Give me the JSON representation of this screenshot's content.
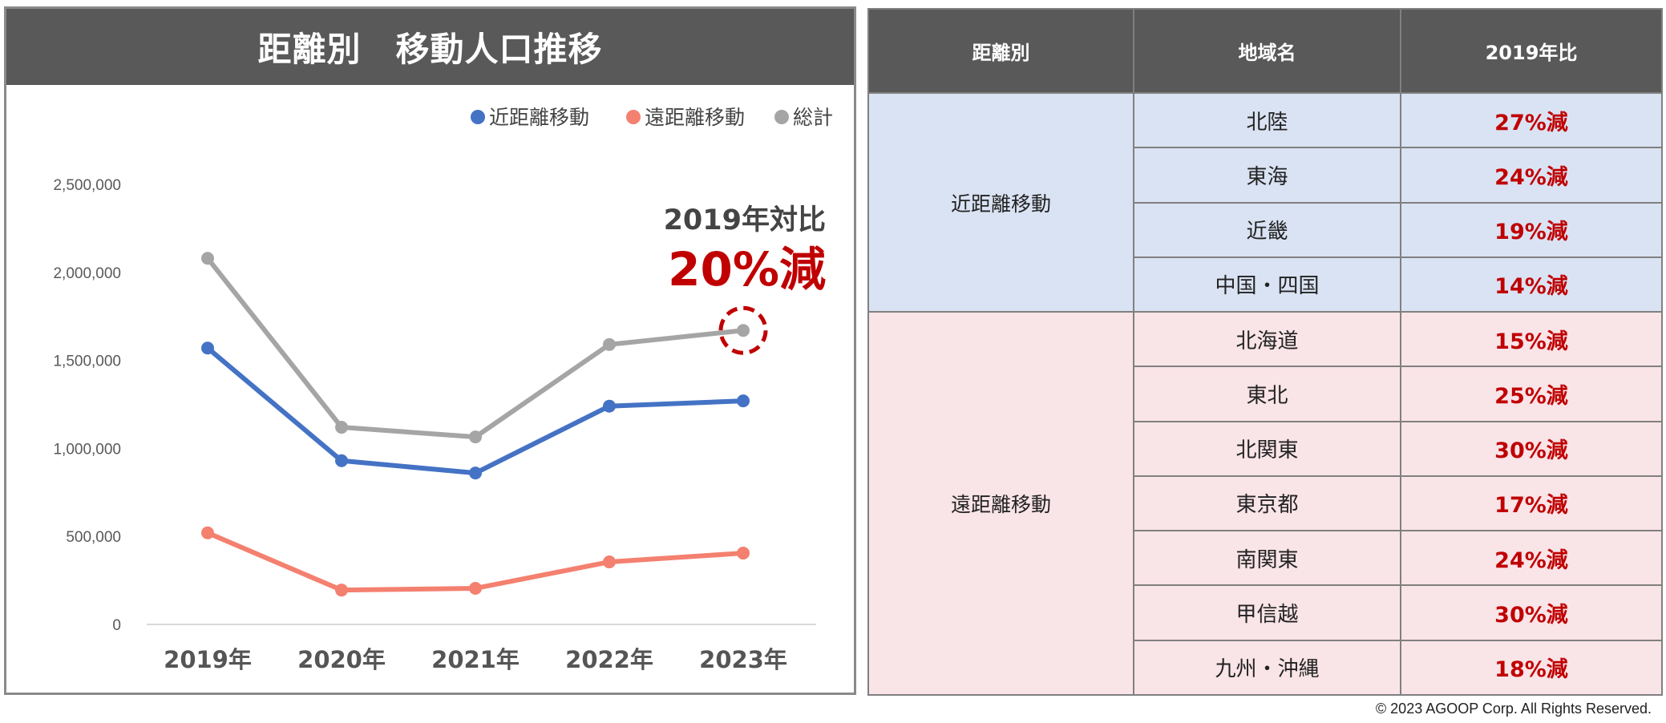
{
  "chart_data": {
    "type": "line",
    "title": "距離別　移動人口推移",
    "categories": [
      "2019年",
      "2020年",
      "2021年",
      "2022年",
      "2023年"
    ],
    "ylim": [
      0,
      2500000
    ],
    "yticks": [
      0,
      500000,
      1000000,
      1500000,
      2000000,
      2500000
    ],
    "ytick_labels": [
      "0",
      "500,000",
      "1,000,000",
      "1,500,000",
      "2,000,000",
      "2,500,000"
    ],
    "grid": false,
    "legend_position": "top-right",
    "series": [
      {
        "name": "近距離移動",
        "color": "#4472c4",
        "values": [
          1570000,
          930000,
          860000,
          1240000,
          1270000
        ]
      },
      {
        "name": "遠距離移動",
        "color": "#f4806f",
        "values": [
          520000,
          195000,
          205000,
          355000,
          405000
        ]
      },
      {
        "name": "総計",
        "color": "#a5a5a5",
        "values": [
          2080000,
          1120000,
          1065000,
          1590000,
          1670000
        ]
      }
    ],
    "annotation": {
      "line1": "2019年対比",
      "line2": "20%減",
      "series_index": 2,
      "point_index": 4,
      "color": "#c00000"
    }
  },
  "table": {
    "headers": [
      "距離別",
      "地域名",
      "2019年比"
    ],
    "groups": [
      {
        "category": "近距離移動",
        "rows": [
          {
            "region": "北陸",
            "ratio": "27%減"
          },
          {
            "region": "東海",
            "ratio": "24%減"
          },
          {
            "region": "近畿",
            "ratio": "19%減"
          },
          {
            "region": "中国・四国",
            "ratio": "14%減"
          }
        ]
      },
      {
        "category": "遠距離移動",
        "rows": [
          {
            "region": "北海道",
            "ratio": "15%減"
          },
          {
            "region": "東北",
            "ratio": "25%減"
          },
          {
            "region": "北関東",
            "ratio": "30%減"
          },
          {
            "region": "東京都",
            "ratio": "17%減"
          },
          {
            "region": "南関東",
            "ratio": "24%減"
          },
          {
            "region": "甲信越",
            "ratio": "30%減"
          },
          {
            "region": "九州・沖縄",
            "ratio": "18%減"
          }
        ]
      }
    ]
  },
  "copyright": "© 2023 AGOOP Corp. All Rights Reserved."
}
